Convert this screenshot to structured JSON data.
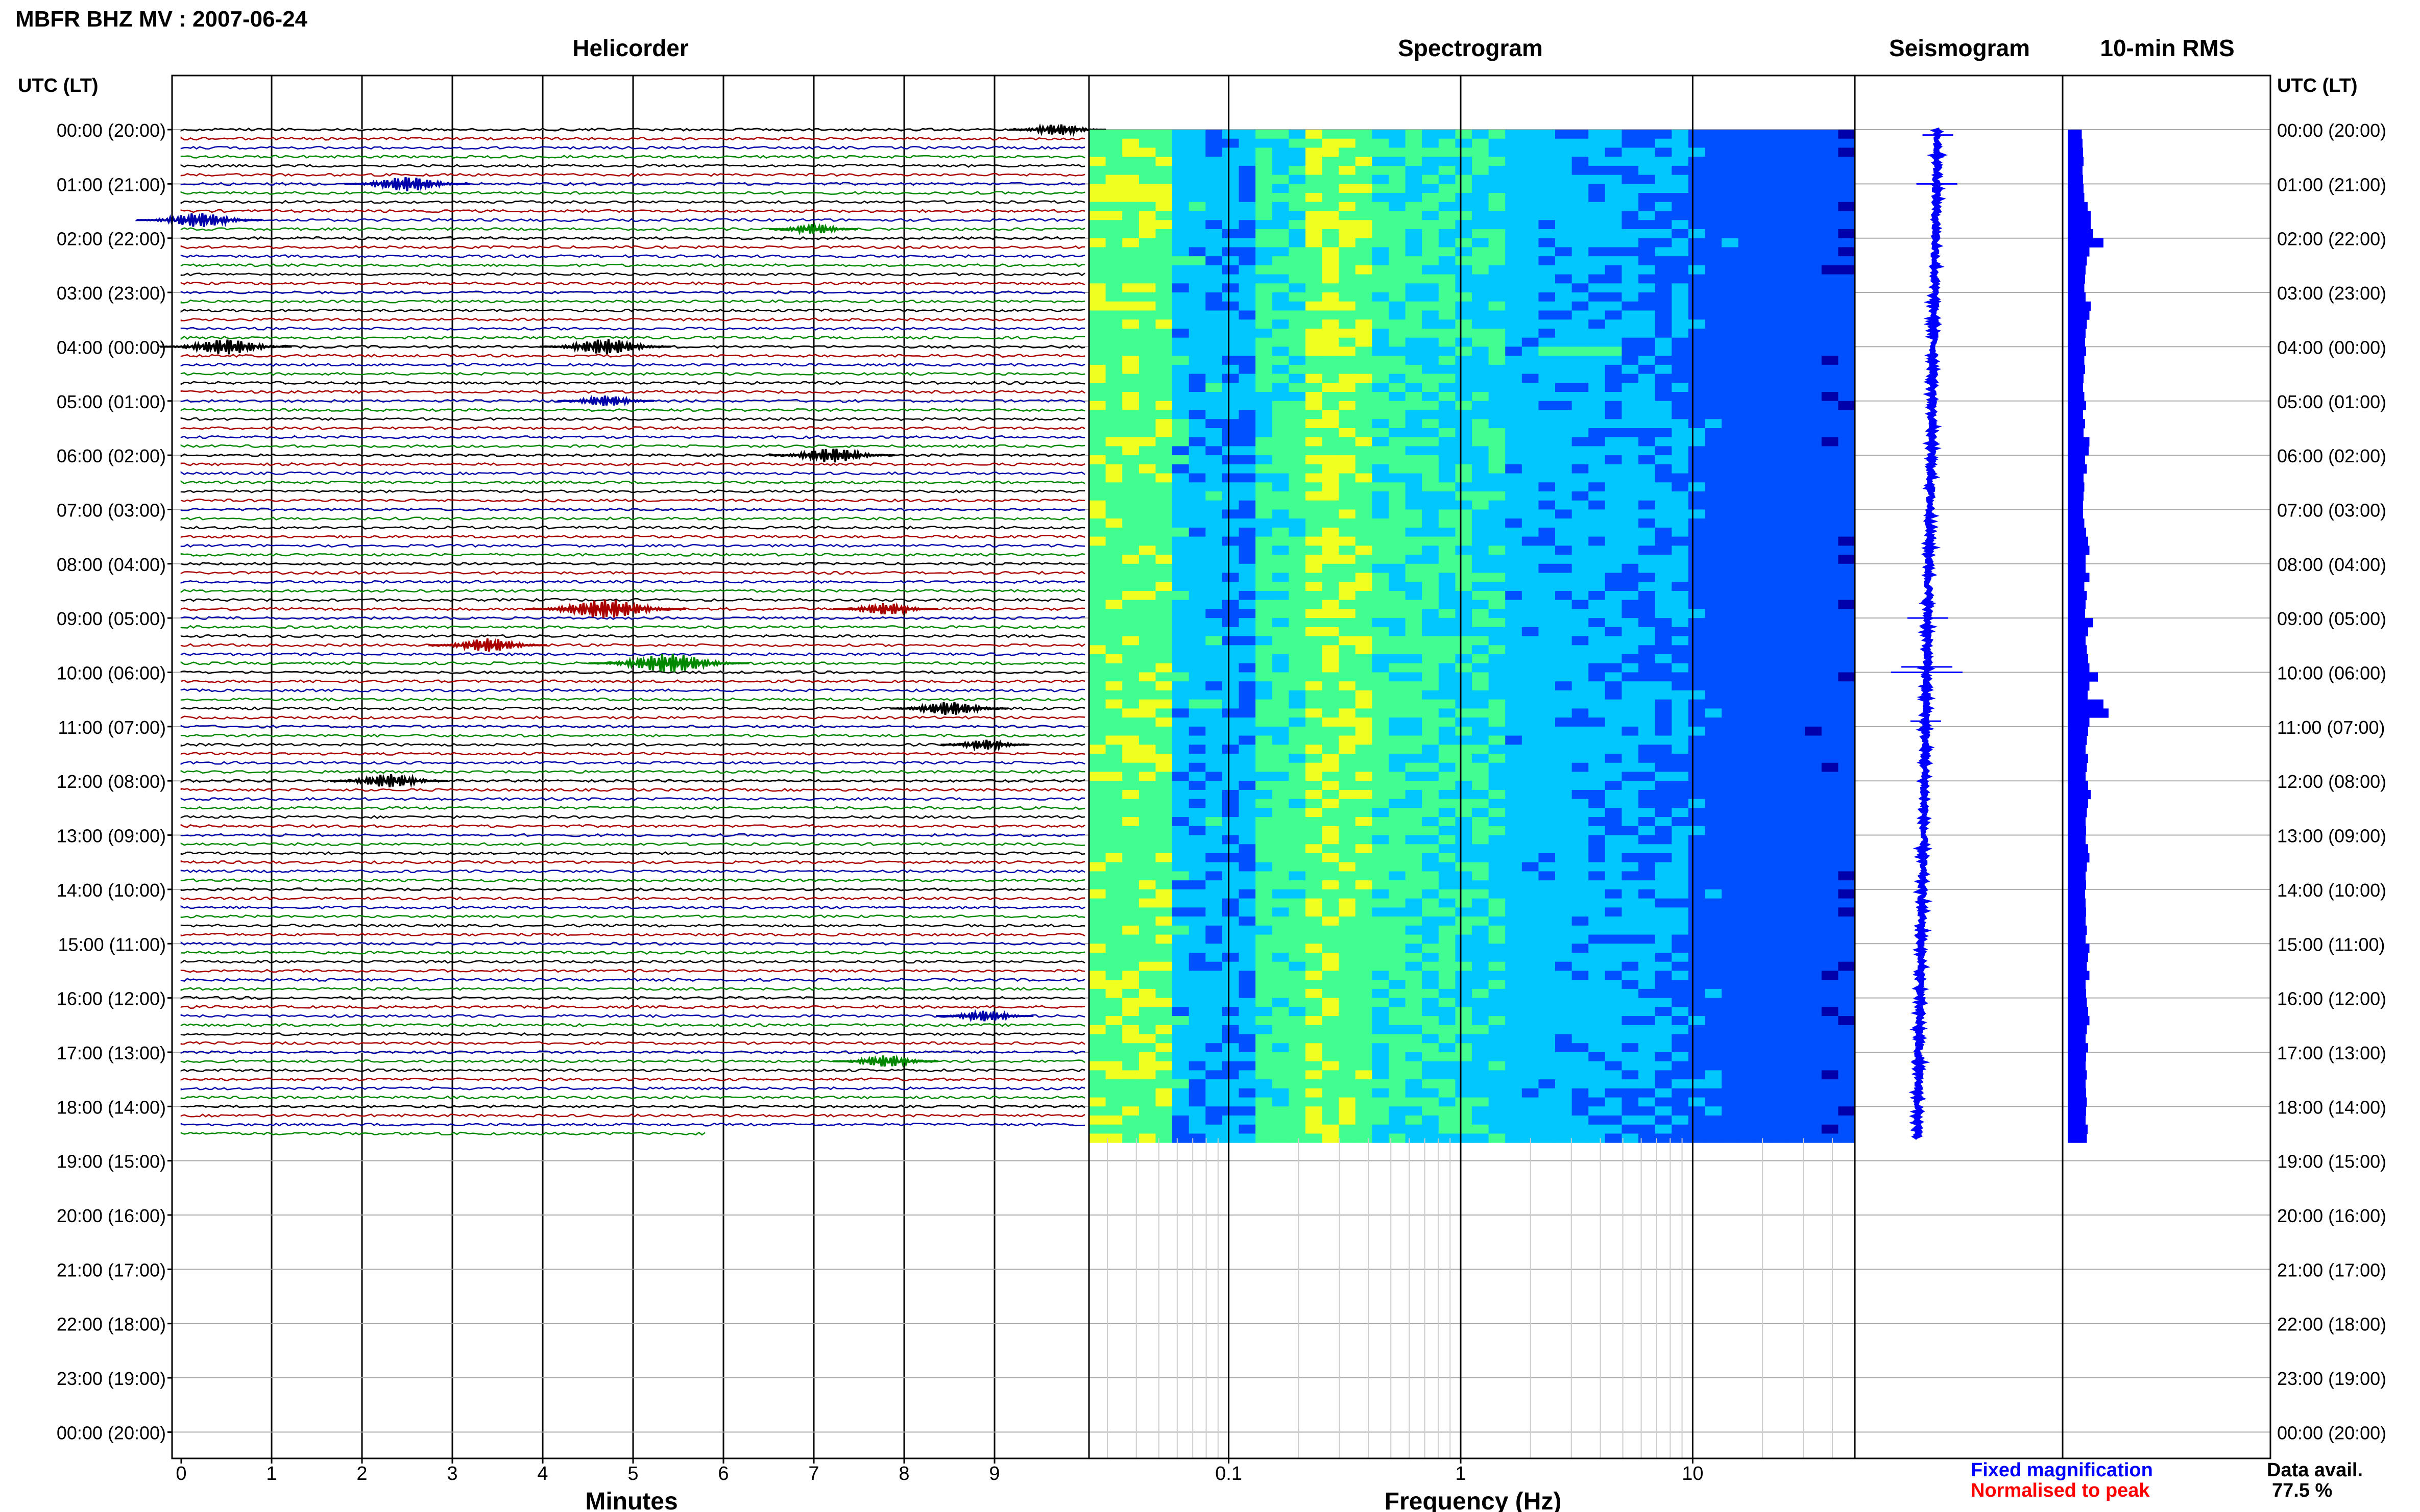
{
  "title": "MBFR BHZ MV : 2007-06-24",
  "time_axis_label": "UTC (LT)",
  "time_labels": [
    "00:00 (20:00)",
    "01:00 (21:00)",
    "02:00 (22:00)",
    "03:00 (23:00)",
    "04:00 (00:00)",
    "05:00 (01:00)",
    "06:00 (02:00)",
    "07:00 (03:00)",
    "08:00 (04:00)",
    "09:00 (05:00)",
    "10:00 (06:00)",
    "11:00 (07:00)",
    "12:00 (08:00)",
    "13:00 (09:00)",
    "14:00 (10:00)",
    "15:00 (11:00)",
    "16:00 (12:00)",
    "17:00 (13:00)",
    "18:00 (14:00)",
    "19:00 (15:00)",
    "20:00 (16:00)",
    "21:00 (17:00)",
    "22:00 (18:00)",
    "23:00 (19:00)",
    "00:00 (20:00)"
  ],
  "panels": {
    "helicorder": {
      "title": "Helicorder",
      "xlabel": "Minutes",
      "ticks": [
        "0",
        "1",
        "2",
        "3",
        "4",
        "5",
        "6",
        "7",
        "8",
        "9"
      ],
      "xlim": [
        0,
        10
      ]
    },
    "spectrogram": {
      "title": "Spectrogram",
      "xlabel": "Frequency (Hz)",
      "ticks": [
        "0.1",
        "1",
        "10"
      ],
      "xscale": "log",
      "xlim": [
        0.025,
        50
      ]
    },
    "seismogram": {
      "title": "Seismogram"
    },
    "rms": {
      "title": "10-min RMS"
    }
  },
  "legend": {
    "fixed": "Fixed magnification",
    "normalised": "Normalised to peak"
  },
  "availability": {
    "label": "Data avail.",
    "value": "77.5 %"
  },
  "colors": {
    "trace_cycle": [
      "#000000",
      "#aa0000",
      "#0000aa",
      "#008800"
    ],
    "fixed": "#0000ff",
    "normalised": "#ff0000",
    "rms_bar": "#0000ff"
  },
  "chart_data": [
    {
      "type": "line",
      "title": "Helicorder",
      "xlabel": "Minutes",
      "ylabel": "UTC (LT)",
      "xlim": [
        0,
        10
      ],
      "rows_per_hour": 6,
      "data_end_utc": "18:35",
      "events": [
        {
          "utc": "00:00",
          "minute": 9.7,
          "amp": 0.5
        },
        {
          "utc": "01:00",
          "minute": 2.5,
          "amp": 0.9
        },
        {
          "utc": "01:40",
          "minute": 0.2,
          "amp": 0.9
        },
        {
          "utc": "01:50",
          "minute": 7.0,
          "amp": 0.4
        },
        {
          "utc": "04:00",
          "minute": 0.5,
          "amp": 1.0
        },
        {
          "utc": "04:00",
          "minute": 4.7,
          "amp": 1.0
        },
        {
          "utc": "05:00",
          "minute": 4.7,
          "amp": 0.5
        },
        {
          "utc": "06:00",
          "minute": 7.2,
          "amp": 0.9
        },
        {
          "utc": "08:50",
          "minute": 4.7,
          "amp": 1.4
        },
        {
          "utc": "08:50",
          "minute": 7.8,
          "amp": 0.6
        },
        {
          "utc": "09:30",
          "minute": 3.4,
          "amp": 0.8
        },
        {
          "utc": "09:50",
          "minute": 5.4,
          "amp": 1.4
        },
        {
          "utc": "10:40",
          "minute": 8.5,
          "amp": 0.8
        },
        {
          "utc": "11:20",
          "minute": 8.9,
          "amp": 0.4
        },
        {
          "utc": "12:00",
          "minute": 2.3,
          "amp": 0.8
        },
        {
          "utc": "16:20",
          "minute": 8.9,
          "amp": 0.5
        },
        {
          "utc": "17:10",
          "minute": 7.8,
          "amp": 0.6
        }
      ]
    },
    {
      "type": "heatmap",
      "title": "Spectrogram",
      "xlabel": "Frequency (Hz)",
      "ylabel": "UTC (LT)",
      "xscale": "log",
      "xlim": [
        0.025,
        50
      ],
      "ticks": [
        0.1,
        1,
        10
      ],
      "time_range_utc": [
        "00:00",
        "18:35"
      ],
      "colormap": [
        "#0000aa",
        "#0050ff",
        "#00c8ff",
        "#40ff90",
        "#f0ff20"
      ],
      "peak_frequency_hz": 0.25,
      "bursts": [
        {
          "utc": "01:00",
          "freq_range_hz": [
            0.03,
            0.06
          ]
        },
        {
          "utc": "04:00",
          "freq_range_hz": [
            2,
            5
          ]
        }
      ]
    },
    {
      "type": "line",
      "title": "Seismogram",
      "series": [
        {
          "name": "Fixed magnification"
        }
      ],
      "x_drift_fraction": [
        0.4,
        0.3
      ],
      "time_range_utc": [
        "00:00",
        "18:35"
      ]
    },
    {
      "type": "bar",
      "title": "10-min RMS",
      "orientation": "horizontal",
      "time_range_utc": [
        "00:00",
        "18:35"
      ],
      "relative_values": [
        0.55,
        0.58,
        0.6,
        0.62,
        0.58,
        0.6,
        0.62,
        0.65,
        0.78,
        0.9,
        0.9,
        1.0,
        1.4,
        0.85,
        0.75,
        0.7,
        0.68,
        0.65,
        0.7,
        0.9,
        0.85,
        0.75,
        0.7,
        0.68,
        0.72,
        0.65,
        0.68,
        0.62,
        0.6,
        0.65,
        0.72,
        0.6,
        0.68,
        0.62,
        0.85,
        0.82,
        0.68,
        0.75,
        0.62,
        0.65,
        0.62,
        0.6,
        0.6,
        0.65,
        0.72,
        0.8,
        0.85,
        0.7,
        0.7,
        0.85,
        0.65,
        0.75,
        0.7,
        0.68,
        1.0,
        0.8,
        0.7,
        0.75,
        0.8,
        0.85,
        1.18,
        0.85,
        0.78,
        1.4,
        1.6,
        0.85,
        0.8,
        0.75,
        0.7,
        0.8,
        0.75,
        0.7,
        0.8,
        0.9,
        0.8,
        0.75,
        0.7,
        0.72,
        0.7,
        0.8,
        0.85,
        0.75,
        0.7,
        0.72,
        0.68,
        0.7,
        0.72,
        0.7,
        0.75,
        0.7,
        0.85,
        0.8,
        0.75,
        0.85,
        0.7,
        0.72,
        0.75,
        0.8,
        0.85,
        0.75,
        0.7,
        0.8,
        0.72,
        0.7,
        0.75,
        0.7,
        0.72,
        0.75,
        0.72,
        0.7,
        0.78,
        0.75
      ]
    }
  ]
}
